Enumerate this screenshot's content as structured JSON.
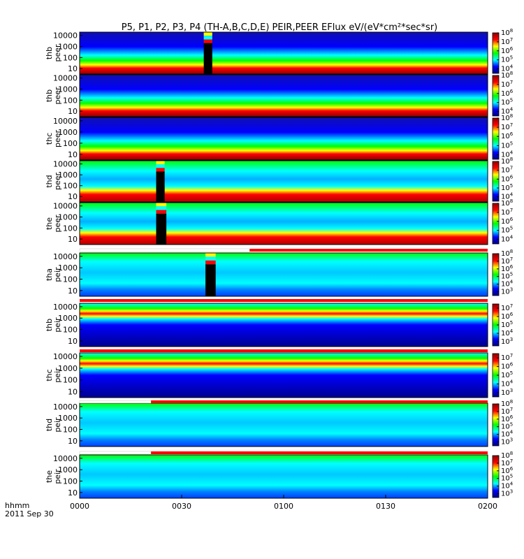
{
  "chart_data": {
    "type": "heatmap",
    "title": "P5, P1, P2, P3, P4 (TH-A,B,C,D,E) PEIR,PEER EFlux eV/(eV*cm²*sec*sr)",
    "x": {
      "ticks": [
        "0000",
        "0030",
        "0100",
        "0130",
        "0200"
      ],
      "tick_values_min": [
        0,
        30,
        60,
        90,
        120
      ],
      "range_min": [
        0,
        120
      ],
      "label": "hhmm",
      "date": "2011 Sep 30"
    },
    "y_scale": "log",
    "y_ticks": [
      "10000",
      "1000",
      "100",
      "10"
    ],
    "panels": [
      {
        "probe": "thb",
        "species": "peer",
        "label_lines": [
          "thb",
          "peer"
        ],
        "cbar": [
          "8",
          "7",
          "6",
          "5",
          "4"
        ],
        "cbar_range_exp": [
          3.5,
          8
        ],
        "mode_bar": null,
        "gaps": [
          [
            36.5,
            39
          ]
        ]
      },
      {
        "probe": "thb",
        "species": "peer",
        "label_lines": [
          "thb",
          "peer"
        ],
        "cbar": [
          "8",
          "7",
          "6",
          "5",
          "4"
        ],
        "cbar_range_exp": [
          3.5,
          8
        ],
        "mode_bar": null,
        "gaps": []
      },
      {
        "probe": "thc",
        "species": "peer",
        "label_lines": [
          "thc",
          "peer"
        ],
        "cbar": [
          "8",
          "7",
          "6",
          "5",
          "4"
        ],
        "cbar_range_exp": [
          3.5,
          8
        ],
        "mode_bar": null,
        "gaps": []
      },
      {
        "probe": "thd",
        "species": "peer",
        "label_lines": [
          "thd",
          "peer"
        ],
        "cbar": [
          "8",
          "7",
          "6",
          "5",
          "4"
        ],
        "cbar_range_exp": [
          3.5,
          8
        ],
        "mode_bar": null,
        "gaps": [
          [
            22.5,
            25
          ]
        ]
      },
      {
        "probe": "the",
        "species": "peer",
        "label_lines": [
          "the",
          "peer"
        ],
        "cbar": [
          "8",
          "7",
          "6",
          "5",
          "4"
        ],
        "cbar_range_exp": [
          3.5,
          8
        ],
        "mode_bar": null,
        "gaps": [
          [
            22.5,
            25.5
          ]
        ]
      },
      {
        "probe": "tha",
        "species": "peir",
        "label_lines": [
          "tha",
          "peir"
        ],
        "cbar": [
          "8",
          "7",
          "6",
          "5",
          "4",
          "3"
        ],
        "cbar_range_exp": [
          2.5,
          8
        ],
        "mode_bar": {
          "white_until_min": 50
        },
        "gaps": [
          [
            37,
            40
          ]
        ]
      },
      {
        "probe": "thb",
        "species": "peir",
        "label_lines": [
          "thb",
          "peir"
        ],
        "cbar": [
          "7",
          "6",
          "5",
          "4",
          "3"
        ],
        "cbar_range_exp": [
          2.5,
          7.5
        ],
        "mode_bar": {
          "white_until_min": 0
        },
        "gaps": []
      },
      {
        "probe": "thc",
        "species": "peir",
        "label_lines": [
          "thc",
          "peir"
        ],
        "cbar": [
          "7",
          "6",
          "5",
          "4",
          "3"
        ],
        "cbar_range_exp": [
          2.5,
          7.5
        ],
        "mode_bar": {
          "white_until_min": 0
        },
        "gaps": []
      },
      {
        "probe": "thd",
        "species": "peir",
        "label_lines": [
          "thd",
          "peir"
        ],
        "cbar": [
          "8",
          "7",
          "6",
          "5",
          "4",
          "3"
        ],
        "cbar_range_exp": [
          2.5,
          8
        ],
        "mode_bar": {
          "white_until_min": 21
        },
        "gaps": []
      },
      {
        "probe": "the",
        "species": "peir",
        "label_lines": [
          "the",
          "peir"
        ],
        "cbar": [
          "8",
          "7",
          "6",
          "5",
          "4",
          "3"
        ],
        "cbar_range_exp": [
          2.5,
          8
        ],
        "mode_bar": {
          "white_until_min": 21
        },
        "gaps": []
      }
    ],
    "colorscale": [
      "#000080",
      "#0000ff",
      "#00ffff",
      "#00ff00",
      "#ffff00",
      "#ff0000",
      "#8b0000"
    ],
    "gap_fill_colors": [
      "#ffff00",
      "#00ffff",
      "#ff0000",
      "#000000"
    ],
    "mode_bar_colors": {
      "white": "#ffffff",
      "red": "#ff0000"
    },
    "grid": false,
    "legend": "colorbar per panel, right side"
  }
}
